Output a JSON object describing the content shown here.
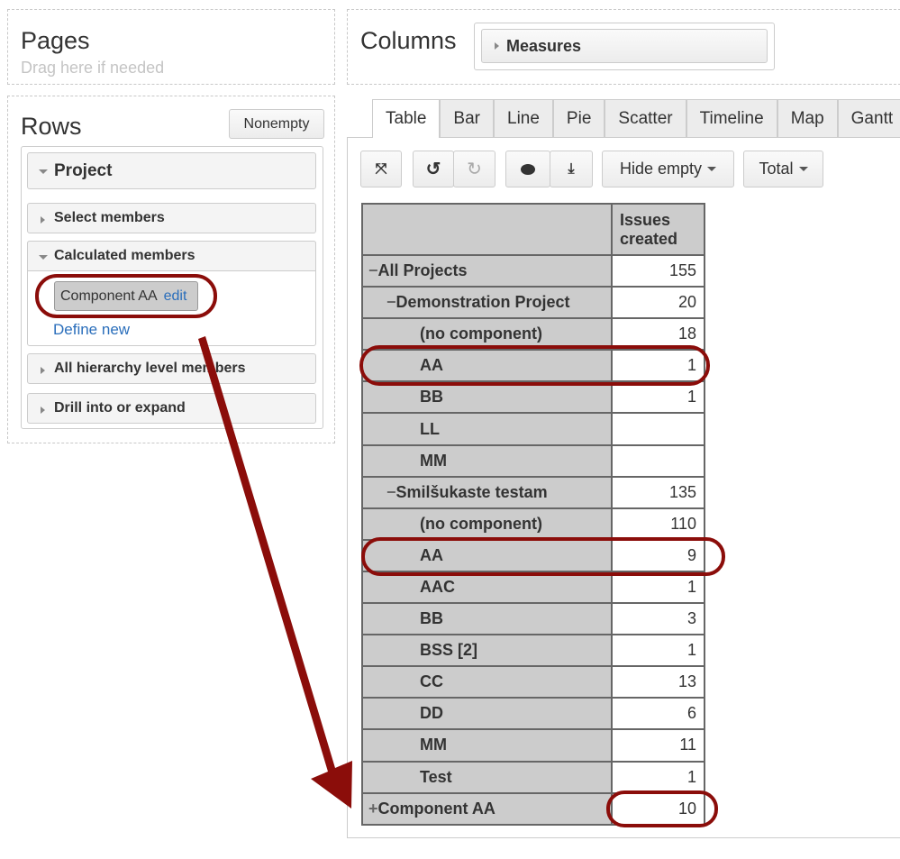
{
  "pages": {
    "title": "Pages",
    "hint": "Drag here if needed"
  },
  "columns": {
    "title": "Columns",
    "measures": "Measures"
  },
  "rows": {
    "title": "Rows",
    "nonempty": "Nonempty",
    "dimension": "Project",
    "sections": {
      "select": "Select members",
      "calculated": "Calculated members",
      "all_levels": "All hierarchy level members",
      "drill": "Drill into or expand"
    },
    "calc_member": "Component AA",
    "edit": "edit",
    "define_new": "Define new"
  },
  "tabs": [
    "Table",
    "Bar",
    "Line",
    "Pie",
    "Scatter",
    "Timeline",
    "Map",
    "Gantt"
  ],
  "toolbar": {
    "hide_empty": "Hide empty",
    "total": "Total"
  },
  "table": {
    "header": "Issues created",
    "rows": [
      {
        "label": "All Projects",
        "value": "155",
        "level": 1,
        "expander": "−"
      },
      {
        "label": "Demonstration Project",
        "value": "20",
        "level": 2,
        "expander": "−"
      },
      {
        "label": "(no component)",
        "value": "18",
        "level": 3
      },
      {
        "label": "AA",
        "value": "1",
        "level": 3
      },
      {
        "label": "BB",
        "value": "1",
        "level": 3
      },
      {
        "label": "LL",
        "value": "",
        "level": 3
      },
      {
        "label": "MM",
        "value": "",
        "level": 3
      },
      {
        "label": "Smilšukaste testam",
        "value": "135",
        "level": 2,
        "expander": "−"
      },
      {
        "label": "(no component)",
        "value": "110",
        "level": 3
      },
      {
        "label": "AA",
        "value": "9",
        "level": 3
      },
      {
        "label": "AAC",
        "value": "1",
        "level": 3
      },
      {
        "label": "BB",
        "value": "3",
        "level": 3
      },
      {
        "label": "BSS [2]",
        "value": "1",
        "level": 3
      },
      {
        "label": "CC",
        "value": "13",
        "level": 3
      },
      {
        "label": "DD",
        "value": "6",
        "level": 3
      },
      {
        "label": "MM",
        "value": "11",
        "level": 3
      },
      {
        "label": "Test",
        "value": "1",
        "level": 3
      },
      {
        "label": "Component AA",
        "value": "10",
        "level": 1,
        "expander": "+"
      }
    ]
  },
  "colors": {
    "annotation": "#8b0d0a",
    "link": "#2a6ebb"
  }
}
